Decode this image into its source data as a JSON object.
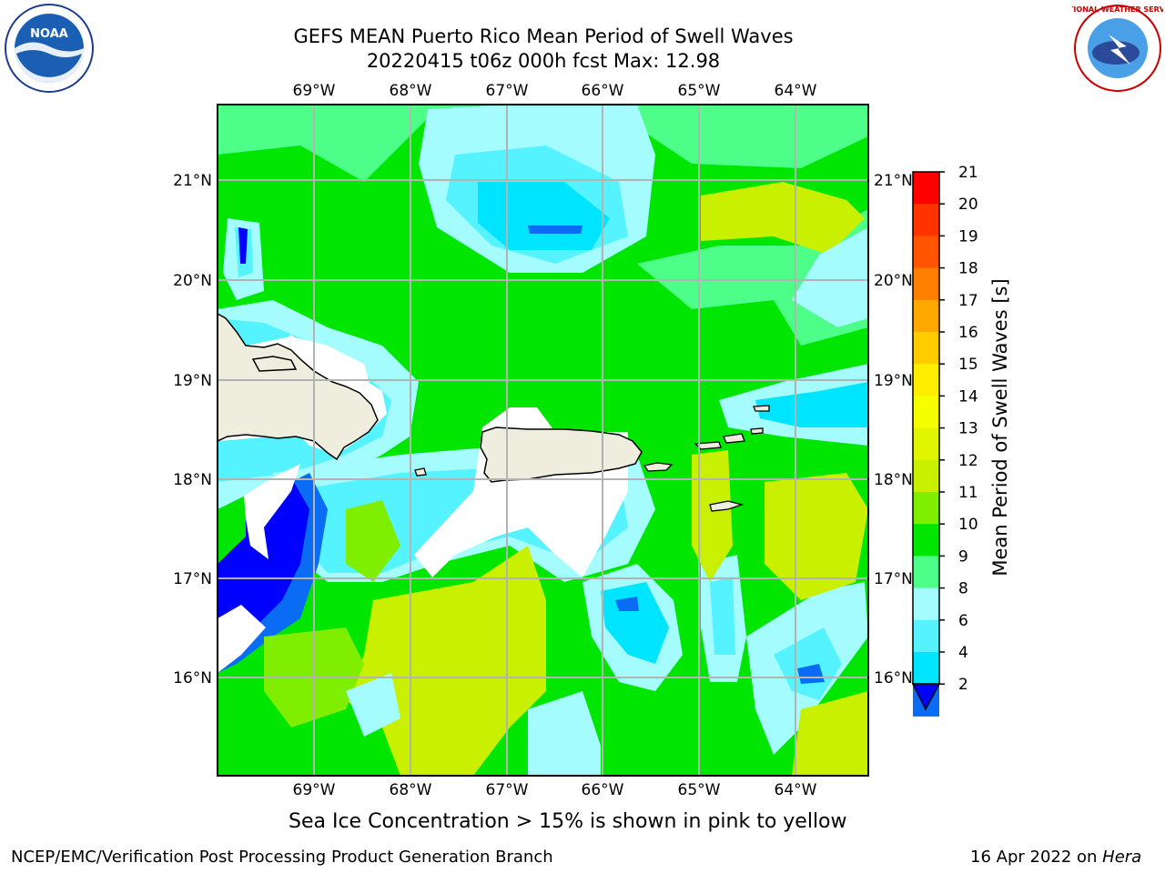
{
  "header": {
    "title_line1": "GEFS MEAN Puerto Rico Mean Period of Swell Waves",
    "title_line2": "20220415 t06z 000h fcst   Max: 12.98"
  },
  "logos": {
    "left": {
      "name": "noaa-logo",
      "text": "NOAA"
    },
    "right": {
      "name": "nws-logo",
      "text": "NATIONAL WEATHER SERVICE"
    }
  },
  "map": {
    "lon_ticks": [
      "69°W",
      "68°W",
      "67°W",
      "66°W",
      "65°W",
      "64°W"
    ],
    "lat_ticks": [
      "21°N",
      "20°N",
      "19°N",
      "18°N",
      "17°N",
      "16°N"
    ],
    "colors": {
      "ocean_dark_blue": "#0000ff",
      "ocean_blue": "#0a6cf5",
      "cyan": "#00e5ff",
      "light_cyan": "#55f2ff",
      "pale_cyan": "#a5fcff",
      "light_green": "#4dff88",
      "green": "#00e600",
      "yellow_green": "#c8f000",
      "land": "#efedde",
      "masked": "#ffffff",
      "grid": "#b3b3b3"
    }
  },
  "colorbar": {
    "label": "Mean Period of Swell Waves [s]",
    "ticks": [
      "21",
      "20",
      "19",
      "18",
      "17",
      "16",
      "15",
      "14",
      "13",
      "12",
      "11",
      "10",
      "9",
      "8",
      "6",
      "4",
      "2"
    ],
    "colors": [
      "#ff0000",
      "#ff3300",
      "#ff5500",
      "#ff7f00",
      "#ffa800",
      "#ffcc00",
      "#ffee00",
      "#f5ff00",
      "#e0f500",
      "#c8f000",
      "#80ee00",
      "#00e600",
      "#4dff88",
      "#a5fcff",
      "#55f2ff",
      "#00e5ff",
      "#0a6cf5"
    ],
    "extend_color": "#0000ff"
  },
  "note": "Sea Ice Concentration > 15% is shown in pink to yellow",
  "footer": {
    "left": "NCEP/EMC/Verification Post Processing Product Generation Branch",
    "date": "16 Apr 2022 on ",
    "machine": "Hera"
  }
}
